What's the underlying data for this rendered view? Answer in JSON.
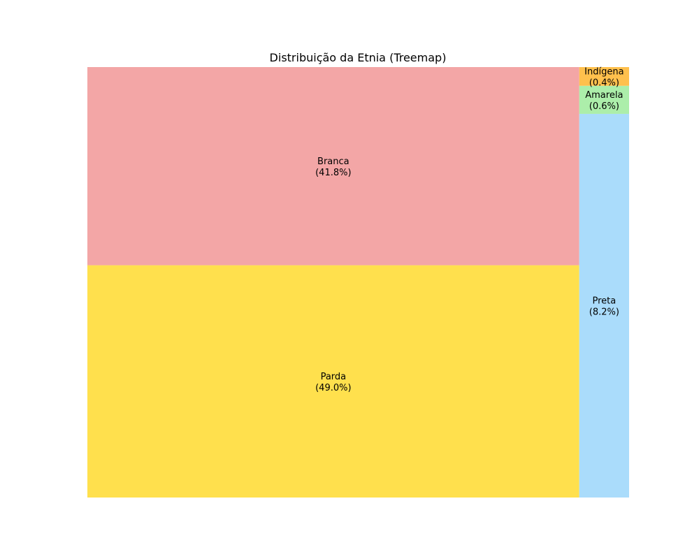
{
  "chart_data": {
    "type": "treemap",
    "title": "Distribuição da Etnia (Treemap)",
    "unit": "%",
    "items": [
      {
        "name": "Parda",
        "value": 49.0,
        "label": "Parda\n(49.0%)",
        "color": "#FFE04D"
      },
      {
        "name": "Branca",
        "value": 41.8,
        "label": "Branca\n(41.8%)",
        "color": "#F3A6A6"
      },
      {
        "name": "Preta",
        "value": 8.2,
        "label": "Preta\n(8.2%)",
        "color": "#AADCFB"
      },
      {
        "name": "Amarela",
        "value": 0.6,
        "label": "Amarela\n(0.6%)",
        "color": "#ACEEAA"
      },
      {
        "name": "Indígena",
        "value": 0.4,
        "label": "Indígena\n(0.4%)",
        "color": "#FFC04D"
      }
    ],
    "axes_visible": false
  }
}
